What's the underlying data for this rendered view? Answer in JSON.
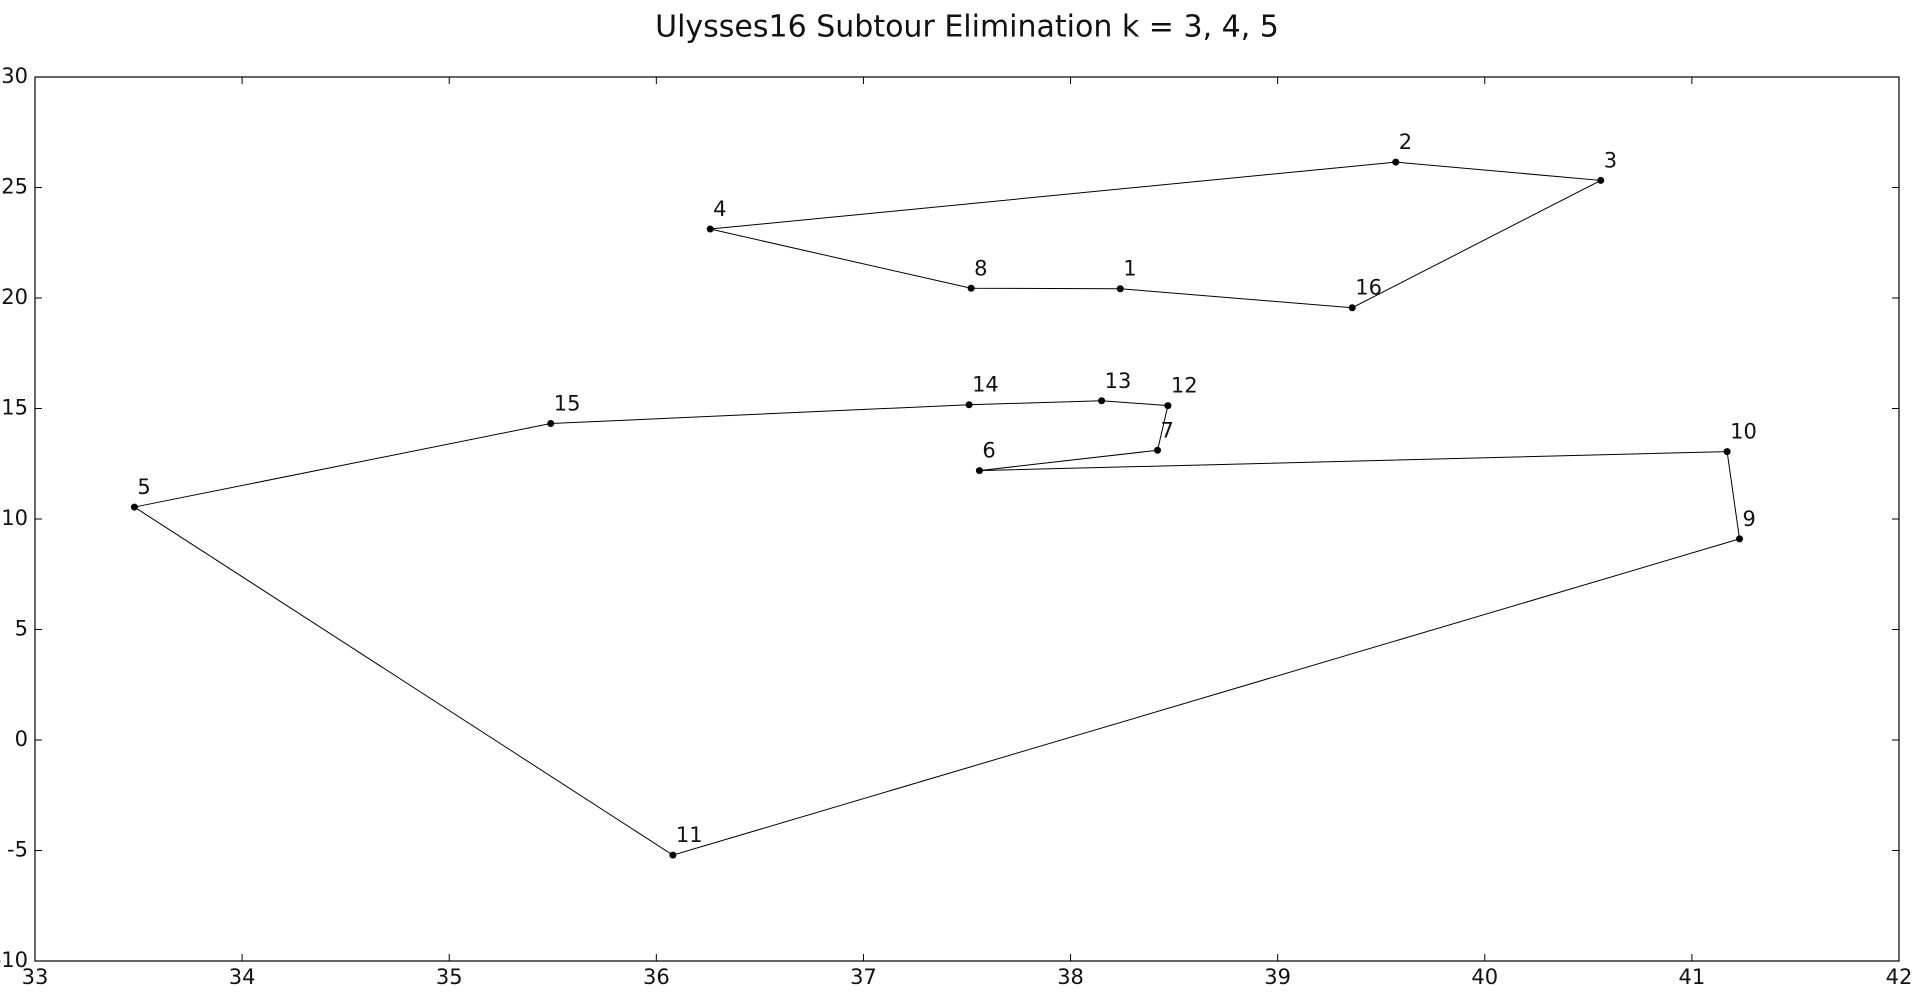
{
  "chart_data": {
    "type": "tour",
    "title": "Ulysses16 Subtour Elimination k = 3, 4, 5",
    "xlim": [
      33,
      42
    ],
    "xticks": [
      33,
      34,
      35,
      36,
      37,
      38,
      39,
      40,
      41,
      42
    ],
    "ylim": [
      -10,
      30
    ],
    "yticks": [
      -10,
      -5,
      0,
      5,
      10,
      15,
      20,
      25,
      30
    ],
    "closed": true,
    "series": [
      {
        "color": "#000000",
        "labels": [
          "4",
          "2",
          "3",
          "16",
          "1",
          "8"
        ],
        "x": [
          36.26,
          39.57,
          40.56,
          39.36,
          38.24,
          37.52
        ],
        "y": [
          23.12,
          26.15,
          25.32,
          19.56,
          20.42,
          20.44
        ]
      },
      {
        "color": "#000000",
        "labels": [
          "5",
          "15",
          "14",
          "13",
          "12",
          "7",
          "6",
          "10",
          "9",
          "11"
        ],
        "x": [
          33.48,
          35.49,
          37.51,
          38.15,
          38.47,
          38.42,
          37.56,
          41.17,
          41.23,
          36.08
        ],
        "y": [
          10.54,
          14.32,
          15.17,
          15.35,
          15.13,
          13.11,
          12.19,
          13.05,
          9.1,
          -5.21
        ]
      }
    ]
  }
}
